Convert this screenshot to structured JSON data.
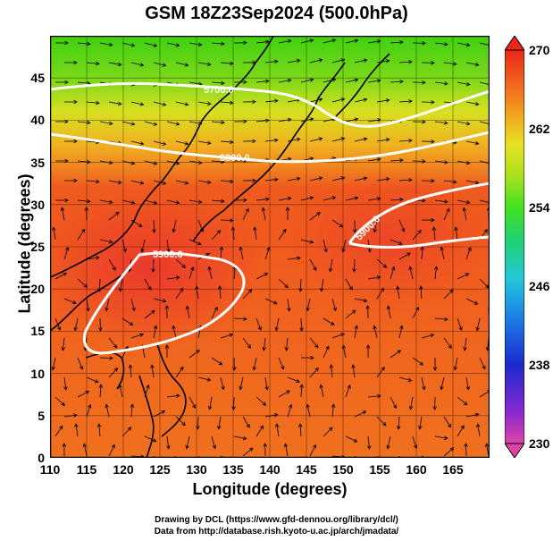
{
  "title": "GSM 18Z23Sep2024 (500.0hPa)",
  "map": {
    "x_axis": {
      "label": "Longitude (degrees)",
      "range": [
        110,
        170
      ],
      "ticks": [
        "110",
        "115",
        "120",
        "125",
        "130",
        "135",
        "140",
        "145",
        "150",
        "155",
        "160",
        "165"
      ]
    },
    "y_axis": {
      "label": "Latitude  (degrees)",
      "range": [
        0,
        50
      ],
      "ticks": [
        "0",
        "5",
        "10",
        "15",
        "20",
        "25",
        "30",
        "35",
        "40",
        "45"
      ]
    },
    "contour_labels": [
      "5700.0",
      "5800.0",
      "5900.0",
      "5900.0"
    ],
    "colorbar": {
      "range": [
        230,
        270
      ],
      "ticks": [
        "230",
        "238",
        "246",
        "254",
        "262",
        "270"
      ],
      "colors": [
        "#dd44aa",
        "#6a2ad0",
        "#1a2ad0",
        "#1e7fe8",
        "#22c8d8",
        "#22d070",
        "#44e020",
        "#a8e020",
        "#e8e020",
        "#f0a020",
        "#f06020",
        "#e82818"
      ]
    }
  },
  "credits": {
    "line1": "Drawing by DCL (https://www.gfd-dennou.org/library/dcl/)",
    "line2": "Data from http://database.rish.kyoto-u.ac.jp/arch/jmadata/"
  }
}
